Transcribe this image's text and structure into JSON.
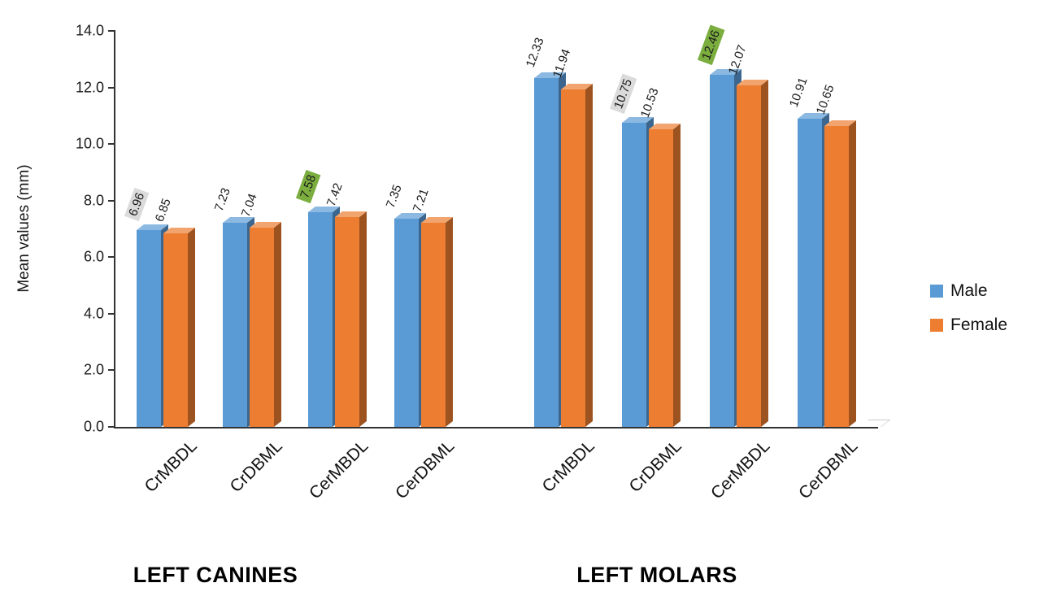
{
  "chart_data": {
    "type": "bar",
    "title": "",
    "ylabel": "Mean values (mm)",
    "ylim": [
      0,
      14
    ],
    "ytick_step": 2,
    "yticks": [
      "0.0",
      "2.0",
      "4.0",
      "6.0",
      "8.0",
      "10.0",
      "12.0",
      "14.0"
    ],
    "legend": [
      "Male",
      "Female"
    ],
    "legend_position": "right",
    "grid": false,
    "series_colors": {
      "Male": "#5B9BD5",
      "Female": "#ED7D31"
    },
    "highlight_colors": {
      "gray": "#DBDBDB",
      "green": "#7BAE3F"
    },
    "groups": [
      {
        "label": "LEFT CANINES",
        "categories": [
          "CrMBDL",
          "CrDBML",
          "CerMBDL",
          "CerDBML"
        ],
        "series": [
          {
            "name": "Male",
            "values": [
              6.96,
              7.23,
              7.58,
              7.35
            ],
            "label_bg": [
              "#DBDBDB",
              null,
              "#7BAE3F",
              null
            ]
          },
          {
            "name": "Female",
            "values": [
              6.85,
              7.04,
              7.42,
              7.21
            ],
            "label_bg": [
              null,
              null,
              null,
              null
            ]
          }
        ]
      },
      {
        "label": "LEFT MOLARS",
        "categories": [
          "CrMBDL",
          "CrDBML",
          "CerMBDL",
          "CerDBML"
        ],
        "series": [
          {
            "name": "Male",
            "values": [
              12.33,
              10.75,
              12.46,
              10.91
            ],
            "label_bg": [
              null,
              "#DBDBDB",
              "#7BAE3F",
              null
            ]
          },
          {
            "name": "Female",
            "values": [
              11.94,
              10.53,
              12.07,
              10.65
            ],
            "label_bg": [
              null,
              null,
              null,
              null
            ]
          }
        ]
      }
    ]
  }
}
